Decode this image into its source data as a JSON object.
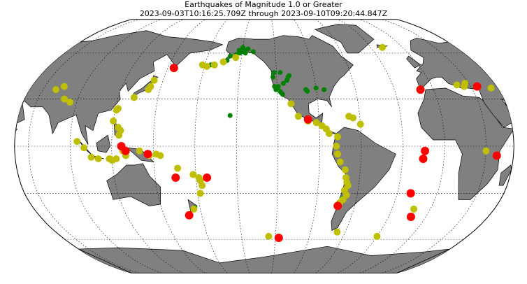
{
  "chart_data": {
    "type": "scatter",
    "title": "Earthquakes of Magnitude 1.0 or Greater",
    "subtitle": "2023-09-03T10:16:25.709Z through 2023-09-10T09:20:44.847Z",
    "projection": "robinson",
    "series": [
      {
        "color": "#008000",
        "x": [
          -150,
          -152,
          -148,
          -155,
          -160,
          -145,
          -150,
          -153,
          -140,
          -147,
          -162,
          -175,
          -118,
          -120,
          -122,
          -117,
          -116,
          -119,
          -121,
          -115,
          -112,
          -111,
          -110,
          -98,
          -97,
          -90,
          -84,
          -122,
          -123,
          -117,
          -155,
          -71,
          176
        ],
        "y": [
          61,
          60,
          62,
          59,
          58,
          63,
          64,
          62,
          61,
          60,
          55,
          52,
          35,
          37,
          38,
          34,
          33,
          38,
          36,
          40,
          42,
          44,
          45,
          36,
          35,
          37,
          36,
          47,
          44,
          47,
          19.5,
          -33,
          -39
        ]
      },
      {
        "color": "#bfbf00",
        "x": [
          142,
          141,
          143,
          132,
          122,
          121,
          125,
          126,
          124,
          120,
          95,
          100,
          105,
          110,
          118,
          120,
          123,
          128,
          130,
          140,
          147,
          152,
          155,
          167,
          178,
          -178,
          -177,
          -176,
          -178,
          175,
          -172,
          -178,
          178,
          -165,
          -155,
          -110,
          -105,
          -98,
          -92,
          -88,
          -85,
          -83,
          -77,
          -78,
          -77,
          -75,
          -71,
          -70,
          -69,
          -68,
          -70,
          -68,
          -70,
          -72,
          -65,
          -68,
          -60,
          -67,
          -30,
          -13,
          -126,
          20,
          25,
          27,
          45,
          75,
          70,
          80,
          85,
          30,
          -19
        ],
        "y": [
          38,
          36,
          42,
          31,
          24,
          23,
          7,
          10,
          12,
          16,
          3,
          -1,
          -7,
          -8,
          -8,
          -9,
          -8,
          -3,
          -6,
          -3,
          -6,
          -5,
          -6,
          -14,
          -18,
          -20,
          -22,
          -25,
          -30,
          -40,
          52,
          51,
          52,
          54,
          57,
          27,
          19,
          16,
          15,
          13,
          11,
          8,
          6,
          0,
          -5,
          -10,
          -15,
          -20,
          -23,
          -25,
          -28,
          -31,
          -34,
          -36,
          18,
          19,
          14,
          -55,
          -58,
          -40,
          -58,
          39,
          38,
          40,
          37,
          38,
          36,
          30,
          28,
          -3,
          64
        ]
      },
      {
        "color": "#ff0000",
        "x": [
          -98,
          -172,
          165,
          -73,
          -12,
          -117,
          170,
          127,
          146,
          130,
          -10,
          35,
          38,
          -14,
          -15,
          -20,
          155
        ],
        "y": [
          17,
          -20,
          -20,
          -38,
          -45,
          -59,
          -44,
          0,
          -5,
          -3,
          36,
          38,
          -6,
          -3,
          -8,
          -30,
          50
        ]
      }
    ]
  }
}
